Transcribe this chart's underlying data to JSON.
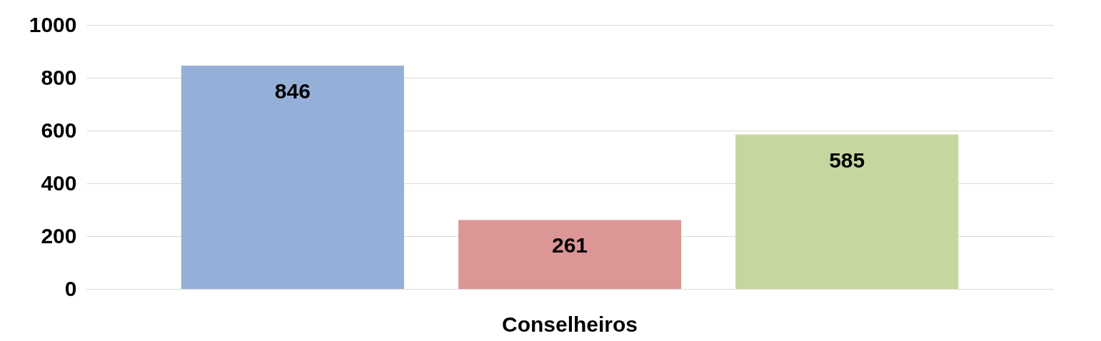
{
  "chart_data": {
    "type": "bar",
    "categories": [
      "Conselheiros"
    ],
    "series": [
      {
        "color": "#95b0d8",
        "values": [
          846
        ]
      },
      {
        "color": "#dc9696",
        "values": [
          261
        ]
      },
      {
        "color": "#c5d79f",
        "values": [
          585
        ]
      }
    ],
    "ylim": [
      0,
      1000
    ],
    "yticks": [
      0,
      200,
      400,
      600,
      800,
      1000
    ],
    "grid": "y",
    "data_labels": true
  }
}
